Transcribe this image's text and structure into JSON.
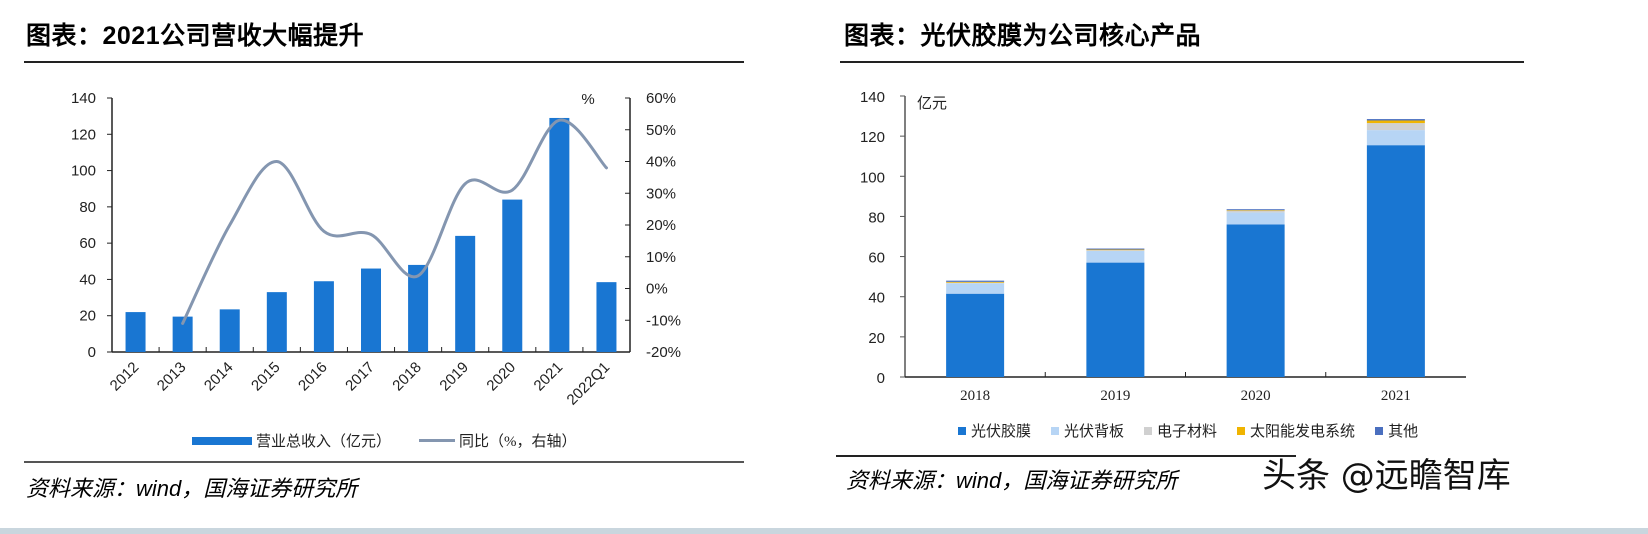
{
  "left_panel": {
    "title": "图表：2021公司营收大幅提升",
    "right_axis_unit": "%",
    "legend": [
      {
        "label": "营业总收入（亿元）",
        "type": "bar",
        "color": "#1976d2"
      },
      {
        "label": "同比（%，右轴）",
        "type": "line",
        "color": "#8496b0"
      }
    ],
    "source": "资料来源：wind，国海证券研究所"
  },
  "right_panel": {
    "title": "图表：光伏胶膜为公司核心产品",
    "y_unit": "亿元",
    "legend": [
      {
        "label": "光伏胶膜",
        "color": "#1976d2"
      },
      {
        "label": "光伏背板",
        "color": "#b7d5f5"
      },
      {
        "label": "电子材料",
        "color": "#d0d0d0"
      },
      {
        "label": "太阳能发电系统",
        "color": "#f0b400"
      },
      {
        "label": "其他",
        "color": "#4a6fbf"
      }
    ],
    "source": "资料来源：wind，国海证券研究所"
  },
  "watermark": "头条 @远瞻智库",
  "chart_data": [
    {
      "type": "bar+line",
      "title": "图表：2021公司营收大幅提升",
      "categories": [
        "2012",
        "2013",
        "2014",
        "2015",
        "2016",
        "2017",
        "2018",
        "2019",
        "2020",
        "2021",
        "2022Q1"
      ],
      "series": [
        {
          "name": "营业总收入（亿元）",
          "type": "bar",
          "axis": "left",
          "values": [
            22,
            19.5,
            23.5,
            33,
            39,
            46,
            48,
            64,
            84,
            129,
            38.5
          ]
        },
        {
          "name": "同比（%，右轴）",
          "type": "line",
          "axis": "right",
          "smooth": true,
          "values": [
            null,
            -11,
            20,
            40,
            18,
            17,
            4,
            33,
            31,
            53,
            38
          ]
        }
      ],
      "y_left": {
        "range": [
          0,
          140
        ],
        "ticks": [
          0,
          20,
          40,
          60,
          80,
          100,
          120,
          140
        ]
      },
      "y_right": {
        "range": [
          -20,
          60
        ],
        "ticks": [
          "-20%",
          "-10%",
          "0%",
          "10%",
          "20%",
          "30%",
          "40%",
          "50%",
          "60%"
        ],
        "unit_label": "%"
      },
      "xlabel": "",
      "grid": false,
      "legend_position": "bottom"
    },
    {
      "type": "bar",
      "stacked": true,
      "title": "图表：光伏胶膜为公司核心产品",
      "categories": [
        "2018",
        "2019",
        "2020",
        "2021"
      ],
      "series": [
        {
          "name": "光伏胶膜",
          "values": [
            41.5,
            57,
            76,
            115.5
          ]
        },
        {
          "name": "光伏背板",
          "values": [
            5.2,
            5.8,
            6.0,
            7.5
          ]
        },
        {
          "name": "电子材料",
          "values": [
            0.3,
            0.4,
            0.8,
            3.5
          ]
        },
        {
          "name": "太阳能发电系统",
          "values": [
            0.4,
            0.3,
            0.3,
            1.3
          ]
        },
        {
          "name": "其他",
          "values": [
            0.6,
            0.5,
            0.5,
            0.7
          ]
        }
      ],
      "ylabel": "亿元",
      "ylim": [
        0,
        140
      ],
      "y_ticks": [
        0,
        20,
        40,
        60,
        80,
        100,
        120,
        140
      ],
      "grid": false,
      "legend_position": "bottom"
    }
  ]
}
